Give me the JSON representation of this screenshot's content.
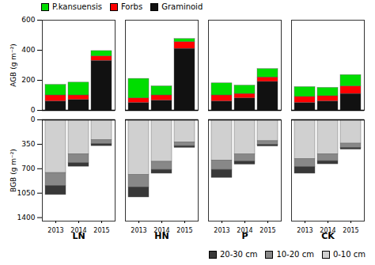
{
  "chart_data": [
    {
      "type": "bar",
      "stacked": true,
      "categories": [
        "2013",
        "2014",
        "2015",
        "2013",
        "2014",
        "2015",
        "2013",
        "2014",
        "2015",
        "2013",
        "2014",
        "2015"
      ],
      "groups": [
        "LN",
        "LN",
        "LN",
        "HN",
        "HN",
        "HN",
        "P",
        "P",
        "P",
        "CK",
        "CK",
        "CK"
      ],
      "series": [
        {
          "name": "Graminoid",
          "color": "#111111",
          "values": [
            60,
            70,
            330,
            50,
            65,
            410,
            60,
            80,
            190,
            50,
            60,
            110
          ]
        },
        {
          "name": "Forbs",
          "color": "#ff0000",
          "values": [
            40,
            30,
            30,
            30,
            35,
            45,
            40,
            30,
            30,
            40,
            35,
            50
          ]
        },
        {
          "name": "P.kansuensis",
          "color": "#00dd00",
          "values": [
            70,
            85,
            35,
            130,
            60,
            20,
            80,
            55,
            55,
            65,
            55,
            75
          ]
        }
      ],
      "ylabel": "AGB (g m⁻²)",
      "ylim": [
        0,
        600
      ],
      "yticks": [
        0,
        200,
        400,
        600
      ],
      "legend": "upper left",
      "tick_labels": "y"
    },
    {
      "type": "bar",
      "stacked": true,
      "categories": [
        "2013",
        "2014",
        "2015",
        "2013",
        "2014",
        "2015",
        "2013",
        "2014",
        "2015",
        "2013",
        "2014",
        "2015"
      ],
      "groups": [
        "LN",
        "LN",
        "LN",
        "HN",
        "HN",
        "HN",
        "P",
        "P",
        "P",
        "CK",
        "CK",
        "CK"
      ],
      "series": [
        {
          "name": "0-10 cm",
          "color": "#d0d0d0",
          "values": [
            760,
            490,
            290,
            790,
            600,
            320,
            580,
            495,
            305,
            560,
            490,
            340
          ]
        },
        {
          "name": "10-20 cm",
          "color": "#888888",
          "values": [
            185,
            130,
            55,
            175,
            115,
            55,
            135,
            100,
            50,
            115,
            100,
            60
          ]
        },
        {
          "name": "20-30 cm",
          "color": "#383838",
          "values": [
            130,
            50,
            30,
            145,
            55,
            25,
            115,
            45,
            25,
            95,
            45,
            25
          ]
        }
      ],
      "ylabel": "BGB (g m⁻²)",
      "ylim": [
        1450,
        0
      ],
      "yticks": [
        0,
        350,
        700,
        1050,
        1400
      ],
      "legend": "lower right"
    }
  ]
}
